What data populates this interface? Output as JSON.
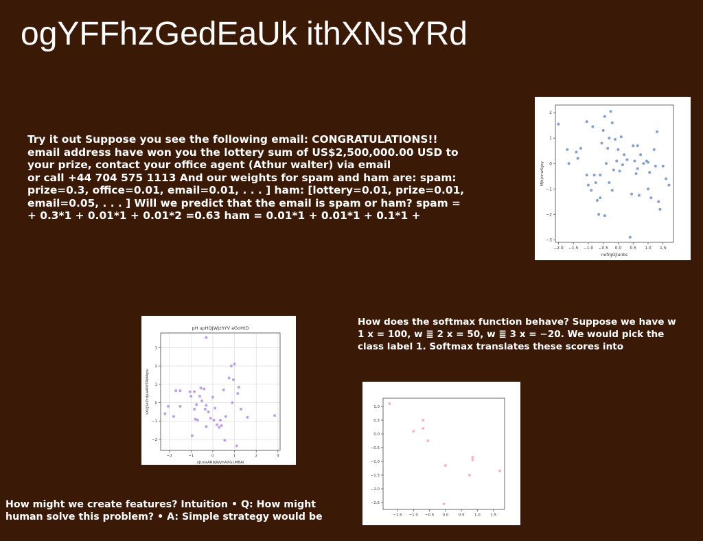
{
  "slide": {
    "title": "ogYFFhzGedEaUk ithXNsYRd"
  },
  "paragraphs": {
    "email_example": [
      "Try it out Suppose you see the following email: CONGRATULATIONS!!",
      "email address have won you the lottery sum of US$2,500,000.00 USD to",
      "your prize, contact your office agent (Athur walter) via email",
      "or call +44 704 575 1113 And our weights for spam and ham are: spam:",
      "prize=0.3, office=0.01, email=0.01, . . . ] ham: [lottery=0.01, prize=0.01,",
      "email=0.05, . . . ] Will we predict that the email is spam or ham? spam =",
      "+ 0.3*1 + 0.01*1 + 0.01*2 =0.63 ham = 0.01*1 + 0.01*1 + 0.1*1 +"
    ],
    "softmax": [
      "How does the softmax function behave? Suppose we have w",
      "1 x = 100, w ≣ 2 x = 50, w ≣ 3 x = −20. We would pick the",
      "class label 1. Softmax translates these scores into"
    ],
    "features": [
      "How might we create features? Intuition • Q: How might",
      "human solve this problem? • A: Simple strategy would be"
    ]
  },
  "chart_data": [
    {
      "type": "scatter",
      "title": "",
      "xlabel": "nefrgOjlunbs",
      "ylabel": "Mjbjrinw5gsy",
      "xlim": [
        -2.1,
        1.85
      ],
      "ylim": [
        -3.1,
        2.3
      ],
      "xticks": [
        -2.0,
        -1.5,
        -1.0,
        -0.5,
        0.0,
        0.5,
        1.0,
        1.5
      ],
      "xtick_labels": [
        "−2.0",
        "−1.5",
        "−1.0",
        "−0.5",
        "0.0",
        "0.5",
        "1.0",
        "1.5"
      ],
      "yticks": [
        -3,
        -2,
        -1,
        0,
        1,
        2
      ],
      "ytick_labels": [
        "−3",
        "−2",
        "−1",
        "0",
        "1",
        "2"
      ],
      "grid": false,
      "color": "#6f8fbf",
      "points": [
        [
          -2.0,
          1.55
        ],
        [
          -1.7,
          0.55
        ],
        [
          -1.65,
          0.0
        ],
        [
          -1.35,
          0.2
        ],
        [
          -1.25,
          0.6
        ],
        [
          -1.05,
          1.65
        ],
        [
          -1.05,
          -0.45
        ],
        [
          -1.0,
          -0.85
        ],
        [
          -0.85,
          1.45
        ],
        [
          -0.8,
          -0.45
        ],
        [
          -0.75,
          -0.75
        ],
        [
          -0.7,
          -1.45
        ],
        [
          -0.65,
          -2.0
        ],
        [
          -0.6,
          -1.35
        ],
        [
          -0.55,
          0.8
        ],
        [
          -0.5,
          1.3
        ],
        [
          -0.45,
          1.85
        ],
        [
          -0.4,
          0.0
        ],
        [
          -0.35,
          0.6
        ],
        [
          -0.3,
          1.0
        ],
        [
          -0.25,
          2.05
        ],
        [
          -0.2,
          1.6
        ],
        [
          -0.15,
          -0.25
        ],
        [
          -0.1,
          0.95
        ],
        [
          -0.05,
          0.1
        ],
        [
          0.0,
          0.55
        ],
        [
          0.1,
          1.05
        ],
        [
          0.2,
          0.35
        ],
        [
          0.3,
          0.15
        ],
        [
          0.4,
          -2.9
        ],
        [
          0.45,
          -1.2
        ],
        [
          0.5,
          0.7
        ],
        [
          0.55,
          0.1
        ],
        [
          0.6,
          -0.4
        ],
        [
          0.65,
          -0.2
        ],
        [
          0.7,
          -1.25
        ],
        [
          0.75,
          0.35
        ],
        [
          0.85,
          0.0
        ],
        [
          0.95,
          0.1
        ],
        [
          1.0,
          -1.0
        ],
        [
          1.05,
          -0.35
        ],
        [
          1.1,
          -1.35
        ],
        [
          1.2,
          0.55
        ],
        [
          1.25,
          -0.1
        ],
        [
          1.3,
          1.25
        ],
        [
          1.35,
          -1.5
        ],
        [
          1.4,
          -1.8
        ],
        [
          1.5,
          -0.1
        ],
        [
          1.6,
          -0.6
        ],
        [
          1.7,
          -0.85
        ],
        [
          -0.6,
          -0.45
        ],
        [
          -0.9,
          -1.05
        ],
        [
          -0.2,
          -1.05
        ],
        [
          0.15,
          -0.05
        ],
        [
          -0.45,
          -2.05
        ],
        [
          0.65,
          0.7
        ],
        [
          -0.3,
          -0.75
        ],
        [
          1.0,
          0.05
        ],
        [
          -1.4,
          0.45
        ],
        [
          0.05,
          -0.3
        ]
      ]
    },
    {
      "type": "scatter",
      "title": "pH upHQJWJzhYV aGoHtD",
      "xlabel": "xJUxxARbjWyhAXGLMBAi",
      "ylabel": "sXUjSeZcdjLaANYTAbMqsv",
      "xlim": [
        -2.4,
        3.1
      ],
      "ylim": [
        -2.6,
        3.8
      ],
      "xticks": [
        -2,
        -1,
        0,
        1,
        2,
        3
      ],
      "xtick_labels": [
        "−2",
        "−1",
        "0",
        "1",
        "2",
        "3"
      ],
      "yticks": [
        -2,
        -1,
        0,
        1,
        2,
        3
      ],
      "ytick_labels": [
        "−2",
        "−1",
        "0",
        "1",
        "2",
        "3"
      ],
      "grid": true,
      "color": "#b48ee0",
      "points": [
        [
          -2.2,
          -0.6
        ],
        [
          -2.05,
          -0.2
        ],
        [
          -1.8,
          -0.75
        ],
        [
          -1.7,
          0.65
        ],
        [
          -1.5,
          0.65
        ],
        [
          -1.5,
          -0.2
        ],
        [
          -1.05,
          0.6
        ],
        [
          -1.0,
          0.35
        ],
        [
          -0.95,
          -1.8
        ],
        [
          -0.85,
          -0.35
        ],
        [
          -0.85,
          0.6
        ],
        [
          -0.8,
          -0.9
        ],
        [
          -0.75,
          -0.1
        ],
        [
          -0.7,
          -0.95
        ],
        [
          -0.6,
          0.35
        ],
        [
          -0.55,
          0.8
        ],
        [
          -0.5,
          0.1
        ],
        [
          -0.4,
          0.75
        ],
        [
          -0.35,
          -0.35
        ],
        [
          -0.3,
          -1.3
        ],
        [
          -0.3,
          -0.15
        ],
        [
          -0.3,
          3.55
        ],
        [
          -0.2,
          -0.5
        ],
        [
          -0.1,
          -0.85
        ],
        [
          0.0,
          0.3
        ],
        [
          0.05,
          -0.95
        ],
        [
          0.1,
          -0.3
        ],
        [
          0.2,
          -1.2
        ],
        [
          0.3,
          -1.35
        ],
        [
          0.35,
          -0.95
        ],
        [
          0.4,
          -1.25
        ],
        [
          0.5,
          0.7
        ],
        [
          0.55,
          -2.05
        ],
        [
          0.6,
          -0.75
        ],
        [
          0.75,
          1.35
        ],
        [
          0.85,
          2.0
        ],
        [
          0.9,
          0.0
        ],
        [
          0.95,
          1.25
        ],
        [
          1.0,
          2.1
        ],
        [
          1.1,
          -2.35
        ],
        [
          1.15,
          0.5
        ],
        [
          1.2,
          0.85
        ],
        [
          1.3,
          -0.35
        ],
        [
          1.6,
          -0.8
        ],
        [
          2.85,
          -0.7
        ]
      ]
    },
    {
      "type": "scatter",
      "title": "",
      "xlabel": "",
      "ylabel": "",
      "xlim": [
        -1.95,
        1.85
      ],
      "ylim": [
        -2.75,
        1.3
      ],
      "xticks": [
        -1.5,
        -1.0,
        -0.5,
        0.0,
        0.5,
        1.0,
        1.5
      ],
      "xtick_labels": [
        "−1.5",
        "−1.0",
        "−0.5",
        "0.0",
        "0.5",
        "1.0",
        "1.5"
      ],
      "yticks": [
        -2.5,
        -2.0,
        -1.5,
        -1.0,
        -0.5,
        0.0,
        0.5,
        1.0
      ],
      "ytick_labels": [
        "−2.5",
        "−2.0",
        "−1.5",
        "−1.0",
        "−0.5",
        "0.0",
        "0.5",
        "1.0"
      ],
      "grid": false,
      "color": "#f3a9bd",
      "points": [
        [
          -1.75,
          1.1
        ],
        [
          -1.0,
          0.1
        ],
        [
          -0.7,
          0.5
        ],
        [
          -0.7,
          0.2
        ],
        [
          -0.55,
          -0.25
        ],
        [
          -0.05,
          -2.55
        ],
        [
          0.0,
          -1.15
        ],
        [
          0.75,
          -1.5
        ],
        [
          0.85,
          -0.85
        ],
        [
          0.85,
          -0.95
        ],
        [
          1.7,
          -1.35
        ]
      ]
    }
  ]
}
